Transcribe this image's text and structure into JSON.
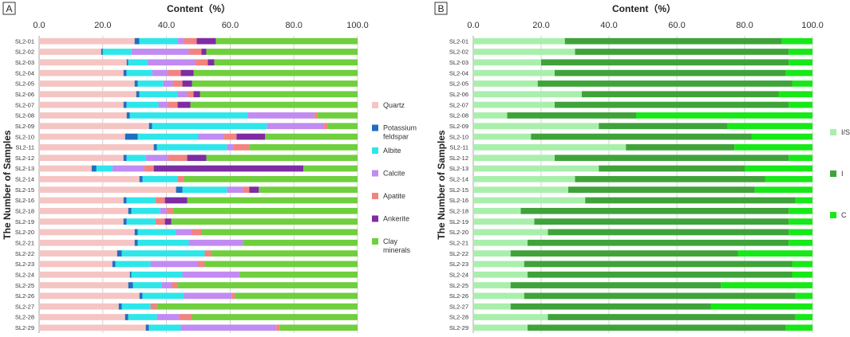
{
  "chart_data": [
    {
      "panel": "A",
      "type": "bar",
      "orientation": "horizontal",
      "stacked": true,
      "xlabel": "Content（%）",
      "ylabel": "The Number of Samples",
      "xlim": [
        0,
        100
      ],
      "xticks": [
        "0.0",
        "20.0",
        "40.0",
        "60.0",
        "80.0",
        "100.0"
      ],
      "grid": true,
      "legend_position": "right",
      "categories": [
        "SL2-01",
        "SL2-02",
        "SL2-03",
        "SL2-04",
        "SL2-05",
        "SL2-06",
        "SL2-07",
        "SL2-08",
        "SL2-09",
        "SL2-10",
        "SL2-11",
        "SL2-12",
        "SL2-13",
        "SL2-14",
        "SL2-15",
        "SL2-16",
        "SL2-18",
        "SL2-19",
        "SL2-20",
        "SL2-21",
        "SL2-22",
        "SL2-23",
        "SL2-24",
        "SL2-25",
        "SL2-26",
        "SL2-27",
        "SL2-28",
        "SL2-29"
      ],
      "series": [
        {
          "name": "Quartz",
          "color": "#f5c5c3",
          "values": [
            30,
            19.5,
            27.5,
            26.5,
            30,
            30.5,
            26.5,
            27.5,
            34.5,
            27,
            36,
            26.5,
            16.5,
            31.5,
            43,
            26.5,
            28,
            26.5,
            30,
            30,
            24.5,
            23,
            28.5,
            28,
            31.5,
            25,
            27,
            33.5
          ]
        },
        {
          "name": "Potassium feldspar",
          "color": "#1f6fc1",
          "values": [
            1.5,
            0.5,
            0.5,
            1,
            1,
            1,
            1,
            1,
            1,
            4,
            1,
            1,
            1.5,
            1,
            2,
            1,
            1,
            1,
            1,
            1,
            1.5,
            1,
            0.5,
            1.5,
            1,
            1,
            1,
            1
          ]
        },
        {
          "name": "Albite",
          "color": "#2ee6ea",
          "values": [
            12,
            9,
            6,
            8,
            8,
            12,
            10,
            37,
            36,
            19,
            22,
            6,
            5,
            11,
            14,
            9,
            9,
            9,
            12,
            16,
            26,
            11,
            16,
            9,
            13,
            9,
            9,
            10
          ]
        },
        {
          "name": "Calcite",
          "color": "#c18bf2",
          "values": [
            2,
            18,
            15,
            5,
            3,
            3,
            3,
            21,
            18,
            8,
            2,
            7,
            10,
            0,
            5,
            0,
            2,
            0,
            5,
            17,
            0,
            15,
            18,
            3,
            15,
            0,
            7,
            30
          ]
        },
        {
          "name": "Apatite",
          "color": "#f2837e",
          "values": [
            4,
            4,
            4,
            4,
            3,
            2,
            3,
            1,
            1,
            4,
            5,
            6,
            3,
            2,
            2,
            3,
            2,
            3,
            3,
            0,
            2,
            2,
            0,
            2,
            1,
            2,
            4,
            1
          ]
        },
        {
          "name": "Ankerite",
          "color": "#7d2ca3",
          "values": [
            6,
            1.5,
            2,
            4,
            3,
            2,
            4,
            0,
            0,
            9,
            0,
            6,
            47,
            0,
            3,
            7,
            0,
            2,
            0,
            0,
            0,
            0,
            0,
            0,
            0,
            0,
            0,
            0
          ]
        },
        {
          "name": "Clay minerals",
          "color": "#6fcf3d",
          "values": [
            44.5,
            47.5,
            45,
            51.5,
            52,
            49.5,
            52.5,
            12.5,
            9.5,
            29,
            34,
            47.5,
            17,
            54.5,
            31,
            53.5,
            58,
            58.5,
            49,
            36,
            46,
            48,
            37,
            56.5,
            38.5,
            63,
            52,
            24.5
          ]
        }
      ]
    },
    {
      "panel": "B",
      "type": "bar",
      "orientation": "horizontal",
      "stacked": true,
      "xlabel": "Content（%）",
      "ylabel": "The Number of Samples",
      "xlim": [
        0,
        100
      ],
      "xticks": [
        "0.0",
        "20.0",
        "40.0",
        "60.0",
        "80.0",
        "100.0"
      ],
      "grid": true,
      "legend_position": "right",
      "categories": [
        "SL2-01",
        "SL2-02",
        "SL2-03",
        "SL2-04",
        "SL2-05",
        "SL2-06",
        "SL2-07",
        "SL2-08",
        "SL2-09",
        "SL2-10",
        "SL2-11",
        "SL2-12",
        "SL2-13",
        "SL2-14",
        "SL2-15",
        "SL2-16",
        "SL2-18",
        "SL2-19",
        "SL2-20",
        "SL2-21",
        "SL2-22",
        "SL2-23",
        "SL2-24",
        "SL2-25",
        "SL2-26",
        "SL2-27",
        "SL2-28",
        "SL2-29"
      ],
      "series": [
        {
          "name": "I/S",
          "color": "#a9efac",
          "values": [
            27,
            30,
            20,
            24,
            19,
            32,
            24,
            10,
            37,
            17,
            45,
            24,
            37,
            30,
            28,
            33,
            14,
            18,
            22,
            16,
            11,
            15,
            16,
            11,
            15,
            11,
            22,
            16
          ]
        },
        {
          "name": "I",
          "color": "#3fa33a",
          "values": [
            64,
            63,
            73,
            68,
            75,
            58,
            69,
            38,
            38,
            65,
            32,
            69,
            43,
            56,
            55,
            62,
            79,
            75,
            71,
            77,
            67,
            79,
            78,
            62,
            80,
            59,
            73,
            76
          ]
        },
        {
          "name": "C",
          "color": "#17e817",
          "values": [
            9,
            7,
            7,
            8,
            6,
            10,
            7,
            52,
            25,
            18,
            23,
            7,
            20,
            14,
            17,
            5,
            7,
            7,
            7,
            7,
            22,
            6,
            6,
            27,
            5,
            30,
            5,
            8
          ]
        }
      ]
    }
  ],
  "panels": {
    "a": {
      "label": "A"
    },
    "b": {
      "label": "B"
    }
  }
}
